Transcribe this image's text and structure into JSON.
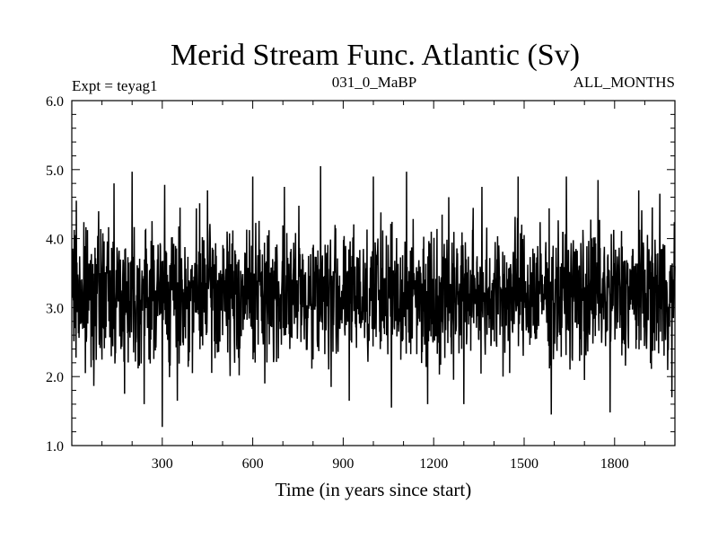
{
  "chart_data": {
    "type": "line",
    "title": "Merid Stream Func. Atlantic (Sv)",
    "subtitle_left": "Expt = teyag1",
    "subtitle_center": "031_0_MaBP",
    "subtitle_right": "ALL_MONTHS",
    "xlabel": "Time (in years since start)",
    "ylabel": "",
    "xlim": [
      0,
      2000
    ],
    "ylim": [
      1.0,
      6.0
    ],
    "x_ticks": [
      300,
      600,
      900,
      1200,
      1500,
      1800
    ],
    "x_tick_labels": [
      "300",
      "600",
      "900",
      "1200",
      "1500",
      "1800"
    ],
    "y_ticks": [
      1.0,
      2.0,
      3.0,
      4.0,
      5.0,
      6.0
    ],
    "y_tick_labels": [
      "1.0",
      "2.0",
      "3.0",
      "4.0",
      "5.0",
      "6.0"
    ],
    "grid": false,
    "legend": "none",
    "series": [
      {
        "name": "",
        "color": "#000000",
        "mean": 3.2,
        "min": 1.27,
        "max": 5.05,
        "n_points": 2000,
        "key_points": [
          {
            "x": 1,
            "y": 3.6
          },
          {
            "x": 15,
            "y": 4.55
          },
          {
            "x": 45,
            "y": 2.05
          },
          {
            "x": 115,
            "y": 3.6
          },
          {
            "x": 140,
            "y": 4.8
          },
          {
            "x": 175,
            "y": 1.75
          },
          {
            "x": 200,
            "y": 4.97
          },
          {
            "x": 240,
            "y": 1.6
          },
          {
            "x": 300,
            "y": 1.27
          },
          {
            "x": 308,
            "y": 4.78
          },
          {
            "x": 350,
            "y": 1.65
          },
          {
            "x": 400,
            "y": 2.05
          },
          {
            "x": 450,
            "y": 4.7
          },
          {
            "x": 500,
            "y": 2.6
          },
          {
            "x": 540,
            "y": 2.2
          },
          {
            "x": 600,
            "y": 4.9
          },
          {
            "x": 640,
            "y": 1.9
          },
          {
            "x": 705,
            "y": 4.75
          },
          {
            "x": 760,
            "y": 2.5
          },
          {
            "x": 825,
            "y": 5.05
          },
          {
            "x": 860,
            "y": 1.85
          },
          {
            "x": 920,
            "y": 1.65
          },
          {
            "x": 1000,
            "y": 4.9
          },
          {
            "x": 1060,
            "y": 1.55
          },
          {
            "x": 1110,
            "y": 4.97
          },
          {
            "x": 1180,
            "y": 1.6
          },
          {
            "x": 1250,
            "y": 4.6
          },
          {
            "x": 1300,
            "y": 1.6
          },
          {
            "x": 1360,
            "y": 4.75
          },
          {
            "x": 1430,
            "y": 2.0
          },
          {
            "x": 1480,
            "y": 4.9
          },
          {
            "x": 1590,
            "y": 1.45
          },
          {
            "x": 1640,
            "y": 4.9
          },
          {
            "x": 1700,
            "y": 1.95
          },
          {
            "x": 1745,
            "y": 4.85
          },
          {
            "x": 1785,
            "y": 1.48
          },
          {
            "x": 1880,
            "y": 4.7
          },
          {
            "x": 1950,
            "y": 4.65
          },
          {
            "x": 1990,
            "y": 1.7
          },
          {
            "x": 2000,
            "y": 3.6
          }
        ]
      }
    ]
  }
}
